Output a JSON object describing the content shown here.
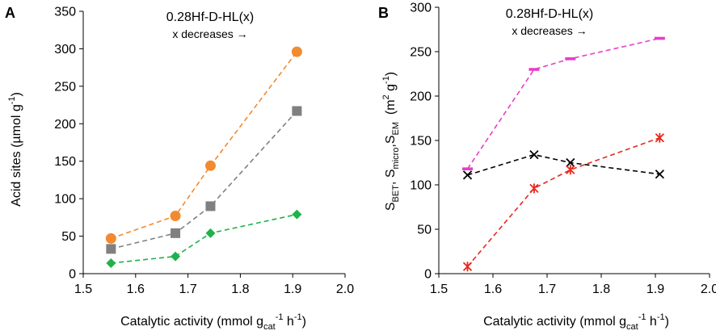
{
  "chart_data": [
    {
      "type": "line",
      "panel": "A",
      "annotation_title": "0.28Hf-D-HL(x)",
      "annotation_sub": "x decreases →",
      "xlabel": "Catalytic activity (mmol g",
      "xlabel_sub": "cat",
      "xlabel_sup": "-1",
      "xlabel_tail": " h",
      "xlabel_sup2": "-1",
      "xlabel_end": ")",
      "ylabel": "Acid sites (µmol g",
      "ylabel_sup": "-1",
      "ylabel_end": ")",
      "xlim": [
        1.5,
        2.0
      ],
      "ylim": [
        0,
        350
      ],
      "xticks": [
        "1.5",
        "1.6",
        "1.7",
        "1.8",
        "1.9",
        "2.0"
      ],
      "xtick_values": [
        1.5,
        1.6,
        1.7,
        1.8,
        1.9,
        2.0
      ],
      "yticks": [
        "0",
        "50",
        "100",
        "150",
        "200",
        "250",
        "300",
        "350"
      ],
      "ytick_values": [
        0,
        50,
        100,
        150,
        200,
        250,
        300,
        350
      ],
      "series": [
        {
          "name": "orange-circles",
          "color": "#F28A30",
          "marker": "circle",
          "x": [
            1.553,
            1.676,
            1.743,
            1.908
          ],
          "y": [
            47,
            77,
            144,
            296
          ]
        },
        {
          "name": "gray-squares",
          "color": "#808080",
          "marker": "square",
          "x": [
            1.553,
            1.676,
            1.743,
            1.908
          ],
          "y": [
            33,
            54,
            90,
            217
          ]
        },
        {
          "name": "green-diamonds",
          "color": "#1FB24A",
          "marker": "diamond",
          "x": [
            1.553,
            1.676,
            1.743,
            1.908
          ],
          "y": [
            14,
            23,
            54,
            79
          ]
        }
      ]
    },
    {
      "type": "line",
      "panel": "B",
      "annotation_title": "0.28Hf-D-HL(x)",
      "annotation_sub": "x decreases →",
      "xlabel": "Catalytic activity (mmol g",
      "xlabel_sub": "cat",
      "xlabel_sup": "-1",
      "xlabel_tail": " h",
      "xlabel_sup2": "-1",
      "xlabel_end": ")",
      "ylabel_parts": [
        "S",
        "BET",
        ", S",
        "micro",
        ",S",
        "EM",
        "  (m",
        "2",
        " g",
        "-1",
        ")"
      ],
      "xlim": [
        1.5,
        2.0
      ],
      "ylim": [
        0,
        300
      ],
      "xticks": [
        "1.5",
        "1.6",
        "1.7",
        "1.8",
        "1.9",
        "2.0"
      ],
      "xtick_values": [
        1.5,
        1.6,
        1.7,
        1.8,
        1.9,
        2.0
      ],
      "yticks": [
        "0",
        "50",
        "100",
        "150",
        "200",
        "250",
        "300"
      ],
      "ytick_values": [
        0,
        50,
        100,
        150,
        200,
        250,
        300
      ],
      "series": [
        {
          "name": "magenta-dashes",
          "color": "#E83DC8",
          "marker": "dash",
          "x": [
            1.553,
            1.676,
            1.743,
            1.908
          ],
          "y": [
            118,
            230,
            242,
            265
          ]
        },
        {
          "name": "black-crosses",
          "color": "#000000",
          "marker": "x",
          "x": [
            1.553,
            1.676,
            1.743,
            1.908
          ],
          "y": [
            111,
            134,
            125,
            112
          ]
        },
        {
          "name": "red-stars",
          "color": "#E8281E",
          "marker": "star",
          "x": [
            1.553,
            1.676,
            1.743,
            1.908
          ],
          "y": [
            8,
            96,
            117,
            153
          ]
        }
      ]
    }
  ]
}
